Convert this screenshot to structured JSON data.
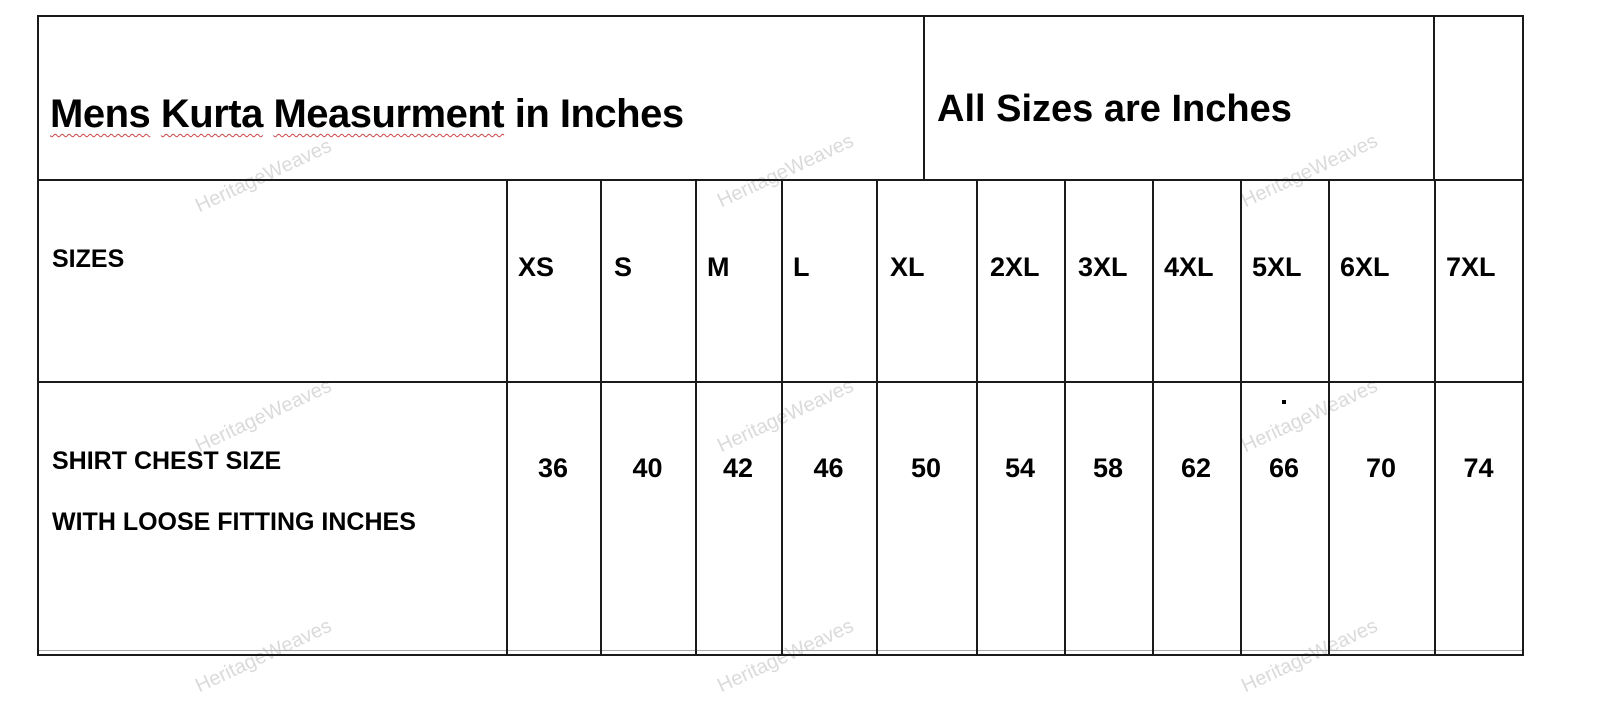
{
  "title_words": [
    "Mens",
    "Kurta",
    "Measurment",
    "in Inches"
  ],
  "subtitle": "All Sizes are Inches",
  "rows": {
    "sizes_label": "SIZES",
    "chest_label_line1": "SHIRT CHEST SIZE",
    "chest_label_line2": "WITH LOOSE FITTING INCHES"
  },
  "sizes": [
    "XS",
    "S",
    "M",
    "L",
    "XL",
    "2XL",
    "3XL",
    "4XL",
    "5XL",
    "6XL",
    "7XL"
  ],
  "chest": [
    "36",
    "40",
    "42",
    "46",
    "50",
    "54",
    "58",
    "62",
    "66",
    "70",
    "74"
  ],
  "watermark": "HeritageWeaves"
}
